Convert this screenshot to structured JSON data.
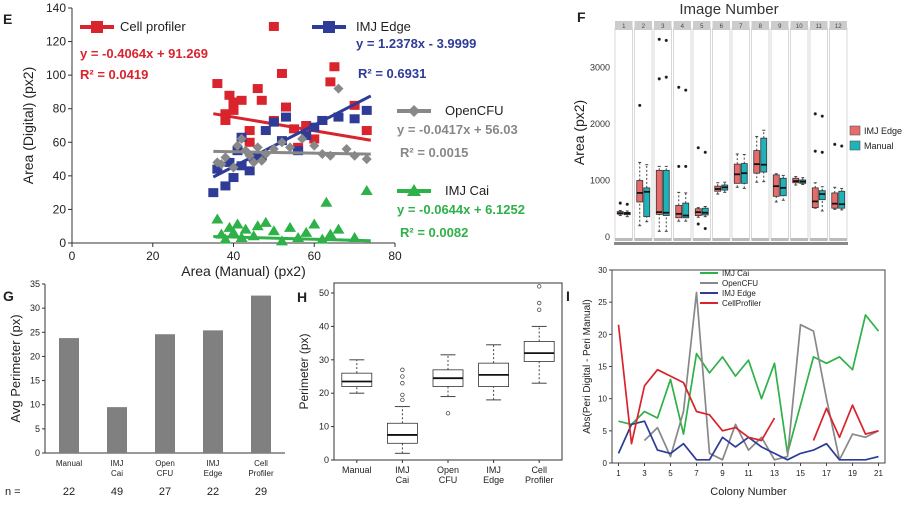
{
  "panels": {
    "E": "E",
    "F": "F",
    "G": "G",
    "H": "H",
    "I": "I"
  },
  "colors": {
    "red": "#d9232d",
    "blue": "#2e3b97",
    "gray": "#888888",
    "green": "#2eb148",
    "box_red": "#e66c6c",
    "box_teal": "#1fb2b8",
    "bar": "#808080"
  },
  "chart_data": [
    {
      "id": "E",
      "type": "scatter",
      "xlabel": "Area (Manual) (px2)",
      "ylabel": "Area (Digital) (px2)",
      "xlim": [
        0,
        80
      ],
      "ylim": [
        0,
        140
      ],
      "xticks": [
        "0",
        "20",
        "40",
        "60",
        "80"
      ],
      "yticks": [
        "0",
        "20",
        "40",
        "60",
        "80",
        "100",
        "120",
        "140"
      ],
      "series": [
        {
          "name": "Cell profiler",
          "color": "#d9232d",
          "marker": "square",
          "eq": "y = -0.4064x + 91.269",
          "r2": "R² = 0.0419",
          "slope": -0.4064,
          "intercept": 91.269,
          "points": [
            [
              36,
              95
            ],
            [
              38,
              77
            ],
            [
              38,
              73
            ],
            [
              39,
              88
            ],
            [
              40,
              84
            ],
            [
              40,
              79
            ],
            [
              42,
              85
            ],
            [
              44,
              60
            ],
            [
              44,
              67
            ],
            [
              46,
              92
            ],
            [
              47,
              85
            ],
            [
              50,
              73
            ],
            [
              52,
              101
            ],
            [
              53,
              81
            ],
            [
              55,
              68
            ],
            [
              56,
              57
            ],
            [
              58,
              70
            ],
            [
              60,
              62
            ],
            [
              62,
              73
            ],
            [
              64,
              96
            ],
            [
              70,
              82
            ],
            [
              73,
              67
            ],
            [
              50,
              129
            ],
            [
              65,
              105
            ]
          ]
        },
        {
          "name": "IMJ Edge",
          "color": "#2e3b97",
          "marker": "square",
          "eq": "y = 1.2378x - 3.9999",
          "r2": "R² = 0.6931",
          "slope": 1.2378,
          "intercept": -3.9999,
          "points": [
            [
              35,
              30
            ],
            [
              36,
              44
            ],
            [
              38,
              34
            ],
            [
              39,
              48
            ],
            [
              40,
              39
            ],
            [
              41,
              55
            ],
            [
              42,
              46
            ],
            [
              42,
              63
            ],
            [
              44,
              43
            ],
            [
              45,
              51
            ],
            [
              47,
              52
            ],
            [
              48,
              67
            ],
            [
              50,
              72
            ],
            [
              53,
              75
            ],
            [
              58,
              64
            ],
            [
              60,
              69
            ],
            [
              62,
              73
            ],
            [
              66,
              75
            ],
            [
              70,
              74
            ],
            [
              73,
              79
            ],
            [
              56,
              55
            ],
            [
              52,
              61
            ]
          ]
        },
        {
          "name": "OpenCFU",
          "color": "#888888",
          "marker": "diamond",
          "eq": "y = -0.0417x + 56.03",
          "r2": "R² = 0.0015",
          "slope": -0.0417,
          "intercept": 56.03,
          "points": [
            [
              36,
              48
            ],
            [
              37,
              47
            ],
            [
              38,
              51
            ],
            [
              40,
              45
            ],
            [
              41,
              58
            ],
            [
              42,
              62
            ],
            [
              43,
              55
            ],
            [
              44,
              52
            ],
            [
              45,
              48
            ],
            [
              46,
              57
            ],
            [
              47,
              49
            ],
            [
              48,
              53
            ],
            [
              50,
              56
            ],
            [
              52,
              60
            ],
            [
              54,
              57
            ],
            [
              57,
              62
            ],
            [
              60,
              58
            ],
            [
              62,
              53
            ],
            [
              64,
              52
            ],
            [
              66,
              92
            ],
            [
              68,
              56
            ],
            [
              70,
              52
            ],
            [
              73,
              50
            ]
          ]
        },
        {
          "name": "IMJ Cai",
          "color": "#2eb148",
          "marker": "triangle",
          "eq": "y = -0.0644x + 6.1252",
          "r2": "R² = 0.0082",
          "slope": -0.0644,
          "intercept": 6.1252,
          "points": [
            [
              36,
              14
            ],
            [
              37,
              5
            ],
            [
              38,
              2
            ],
            [
              39,
              9
            ],
            [
              40,
              6
            ],
            [
              41,
              11
            ],
            [
              42,
              3
            ],
            [
              43,
              8
            ],
            [
              45,
              4
            ],
            [
              46,
              10
            ],
            [
              48,
              12
            ],
            [
              50,
              7
            ],
            [
              52,
              1
            ],
            [
              54,
              9
            ],
            [
              56,
              3
            ],
            [
              58,
              6
            ],
            [
              60,
              11
            ],
            [
              62,
              2
            ],
            [
              64,
              5
            ],
            [
              66,
              8
            ],
            [
              70,
              3
            ],
            [
              73,
              31
            ],
            [
              63,
              24
            ]
          ]
        }
      ]
    },
    {
      "id": "F",
      "type": "box",
      "title": "Image Number",
      "ylabel": "Area (px2)",
      "ylim": [
        0,
        3700
      ],
      "yticks": [
        "0",
        "1000",
        "2000",
        "3000"
      ],
      "legend": [
        "IMJ Edge",
        "Manual"
      ],
      "categories": [
        "1",
        "2",
        "3",
        "4",
        "5",
        "6",
        "7",
        "8",
        "9",
        "10",
        "11",
        "12"
      ],
      "series": [
        {
          "name": "IMJ Edge",
          "color": "#e66c6c",
          "boxes": [
            {
              "lo": 380,
              "q1": 405,
              "med": 420,
              "q3": 450,
              "hi": 470,
              "out": [
                600
              ]
            },
            {
              "lo": 200,
              "q1": 620,
              "med": 780,
              "q3": 1000,
              "hi": 1320,
              "out": [
                2330
              ]
            },
            {
              "lo": 100,
              "q1": 400,
              "med": 440,
              "q3": 1180,
              "hi": 1250,
              "out": [
                2800,
                3500
              ]
            },
            {
              "lo": 280,
              "q1": 340,
              "med": 410,
              "q3": 560,
              "hi": 790,
              "out": [
                1250,
                2650
              ]
            },
            {
              "lo": 350,
              "q1": 380,
              "med": 440,
              "q3": 500,
              "hi": 520,
              "out": [
                230,
                1580
              ]
            },
            {
              "lo": 760,
              "q1": 810,
              "med": 850,
              "q3": 900,
              "hi": 960,
              "out": []
            },
            {
              "lo": 880,
              "q1": 950,
              "med": 1110,
              "q3": 1290,
              "hi": 1470,
              "out": []
            },
            {
              "lo": 970,
              "q1": 1130,
              "med": 1290,
              "q3": 1530,
              "hi": 1780,
              "out": []
            },
            {
              "lo": 620,
              "q1": 720,
              "med": 900,
              "q3": 1100,
              "hi": 1120,
              "out": []
            },
            {
              "lo": 920,
              "q1": 960,
              "med": 990,
              "q3": 1040,
              "hi": 1070,
              "out": []
            },
            {
              "lo": 510,
              "q1": 520,
              "med": 630,
              "q3": 870,
              "hi": 960,
              "out": [
                1520,
                2180
              ]
            },
            {
              "lo": 490,
              "q1": 510,
              "med": 590,
              "q3": 780,
              "hi": 880,
              "out": [
                1640
              ]
            }
          ]
        },
        {
          "name": "Manual",
          "color": "#1fb2b8",
          "boxes": [
            {
              "lo": 360,
              "q1": 395,
              "med": 420,
              "q3": 435,
              "hi": 460,
              "out": [
                580
              ]
            },
            {
              "lo": 270,
              "q1": 360,
              "med": 800,
              "q3": 870,
              "hi": 1280,
              "out": []
            },
            {
              "lo": 100,
              "q1": 380,
              "med": 430,
              "q3": 1180,
              "hi": 1250,
              "out": [
                2830,
                3480
              ]
            },
            {
              "lo": 280,
              "q1": 340,
              "med": 380,
              "q3": 600,
              "hi": 780,
              "out": [
                1250,
                2600
              ]
            },
            {
              "lo": 360,
              "q1": 390,
              "med": 430,
              "q3": 510,
              "hi": 540,
              "out": [
                150,
                1500
              ]
            },
            {
              "lo": 790,
              "q1": 830,
              "med": 880,
              "q3": 920,
              "hi": 970,
              "out": []
            },
            {
              "lo": 860,
              "q1": 950,
              "med": 1130,
              "q3": 1300,
              "hi": 1460,
              "out": []
            },
            {
              "lo": 980,
              "q1": 1150,
              "med": 1280,
              "q3": 1750,
              "hi": 1890,
              "out": []
            },
            {
              "lo": 650,
              "q1": 730,
              "med": 870,
              "q3": 1040,
              "hi": 1090,
              "out": []
            },
            {
              "lo": 930,
              "q1": 950,
              "med": 980,
              "q3": 1010,
              "hi": 1050,
              "out": []
            },
            {
              "lo": 460,
              "q1": 660,
              "med": 760,
              "q3": 820,
              "hi": 890,
              "out": [
                1500,
                2140
              ]
            },
            {
              "lo": 480,
              "q1": 510,
              "med": 580,
              "q3": 810,
              "hi": 860,
              "out": [
                1610
              ]
            }
          ]
        }
      ]
    },
    {
      "id": "G",
      "type": "bar",
      "ylabel": "Avg Perimeter (px)",
      "ylim": [
        0,
        35
      ],
      "yticks": [
        "0",
        "5",
        "10",
        "15",
        "20",
        "25",
        "30",
        "35"
      ],
      "categories": [
        [
          "Manual"
        ],
        [
          "IMJ",
          "Cai"
        ],
        [
          "Open",
          "CFU"
        ],
        [
          "IMJ",
          "Edge"
        ],
        [
          "Cell",
          "Profiler"
        ]
      ],
      "values": [
        23.8,
        9.5,
        24.6,
        25.4,
        32.6
      ],
      "n_label": "n   =",
      "n_values": [
        "22",
        "49",
        "27",
        "22",
        "29"
      ]
    },
    {
      "id": "H",
      "type": "box",
      "ylabel": "Perimeter (px)",
      "ylim": [
        0,
        53
      ],
      "yticks": [
        "0",
        "10",
        "20",
        "30",
        "40",
        "50"
      ],
      "categories": [
        [
          "Manual"
        ],
        [
          "IMJ",
          "Cai"
        ],
        [
          "Open",
          "CFU"
        ],
        [
          "IMJ",
          "Edge"
        ],
        [
          "Cell",
          "Profiler"
        ]
      ],
      "boxes": [
        {
          "lo": 20,
          "q1": 22,
          "med": 23.5,
          "q3": 26,
          "hi": 30,
          "out": []
        },
        {
          "lo": 2,
          "q1": 5,
          "med": 7.5,
          "q3": 11,
          "hi": 16,
          "out": [
            18,
            19.5,
            23,
            25,
            27
          ]
        },
        {
          "lo": 19,
          "q1": 22,
          "med": 24.5,
          "q3": 27,
          "hi": 31.5,
          "out": [
            14
          ]
        },
        {
          "lo": 18,
          "q1": 22,
          "med": 25.5,
          "q3": 29,
          "hi": 34.5,
          "out": []
        },
        {
          "lo": 23,
          "q1": 29.5,
          "med": 32,
          "q3": 35.5,
          "hi": 40,
          "out": [
            45,
            47,
            52
          ]
        }
      ]
    },
    {
      "id": "I",
      "type": "line",
      "xlabel": "Colony Number",
      "ylabel": "Abs(Peri Digital - Peri Manual)",
      "xlim": [
        0.5,
        21.5
      ],
      "ylim": [
        0,
        30
      ],
      "xticks": [
        "1",
        "3",
        "5",
        "7",
        "9",
        "11",
        "13",
        "15",
        "17",
        "19",
        "21"
      ],
      "yticks": [
        "0",
        "5",
        "10",
        "15",
        "20",
        "25",
        "30"
      ],
      "series": [
        {
          "name": "IMJ Cai",
          "color": "#2eb148",
          "values": [
            6.5,
            6,
            8,
            7,
            13,
            4.5,
            17,
            14,
            16.5,
            13.5,
            16,
            10,
            15.5,
            1.5,
            9,
            16.5,
            15.5,
            16.5,
            14.5,
            23,
            20.5
          ]
        },
        {
          "name": "OpenCFU",
          "color": "#888888",
          "values": [
            null,
            null,
            3.5,
            5.5,
            1,
            8,
            26.5,
            1.5,
            0.5,
            6,
            2,
            4,
            0.5,
            1,
            21.5,
            20.5,
            10,
            0.5,
            4.5,
            4,
            5
          ]
        },
        {
          "name": "IMJ Edge",
          "color": "#2e3b97",
          "values": [
            1.5,
            6,
            6.5,
            2,
            1.5,
            3,
            0.5,
            0.5,
            4,
            2.5,
            4,
            2.5,
            1.5,
            0.5,
            1.5,
            2,
            3,
            0.5,
            0.5,
            0.5,
            1
          ]
        },
        {
          "name": "CellProfiler",
          "color": "#d9232d",
          "values": [
            21.5,
            3,
            12,
            14.5,
            13.5,
            12.5,
            8,
            7.5,
            5,
            5.5,
            4,
            3.5,
            7,
            null,
            null,
            3.5,
            8.5,
            4,
            9,
            4.5,
            5
          ]
        }
      ]
    }
  ]
}
